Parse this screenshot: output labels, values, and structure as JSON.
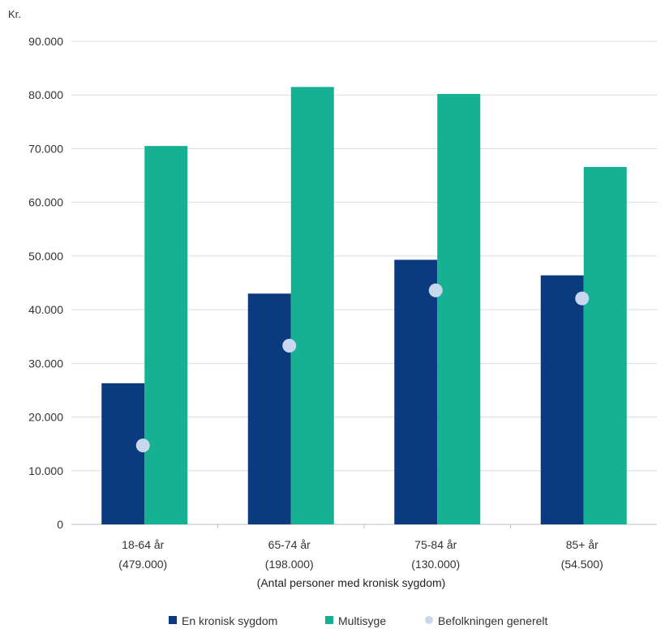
{
  "chart_data": {
    "type": "bar",
    "y_unit": "Kr.",
    "xlabel": "(Antal personer med kronisk sygdom)",
    "ylim": [
      0,
      90000
    ],
    "y_ticks": [
      0,
      10000,
      20000,
      30000,
      40000,
      50000,
      60000,
      70000,
      80000,
      90000
    ],
    "y_tick_labels": [
      "0",
      "10.000",
      "20.000",
      "30.000",
      "40.000",
      "50.000",
      "60.000",
      "70.000",
      "80.000",
      "90.000"
    ],
    "categories": [
      {
        "line1": "18-64 år",
        "line2": "(479.000)"
      },
      {
        "line1": "65-74 år",
        "line2": "(198.000)"
      },
      {
        "line1": "75-84 år",
        "line2": "(130.000)"
      },
      {
        "line1": "85+ år",
        "line2": "(54.500)"
      }
    ],
    "series": [
      {
        "name": "En kronisk sygdom",
        "kind": "bar",
        "color": "#0b3a7e",
        "values": [
          26300,
          43000,
          49300,
          46400
        ]
      },
      {
        "name": "Multisyge",
        "kind": "bar",
        "color": "#16b092",
        "values": [
          70500,
          81500,
          80200,
          66600
        ]
      },
      {
        "name": "Befolkningen generelt",
        "kind": "point",
        "color": "#c9d7ee",
        "values": [
          14700,
          33300,
          43600,
          42100
        ]
      }
    ],
    "grid": true,
    "legend_position": "bottom"
  }
}
